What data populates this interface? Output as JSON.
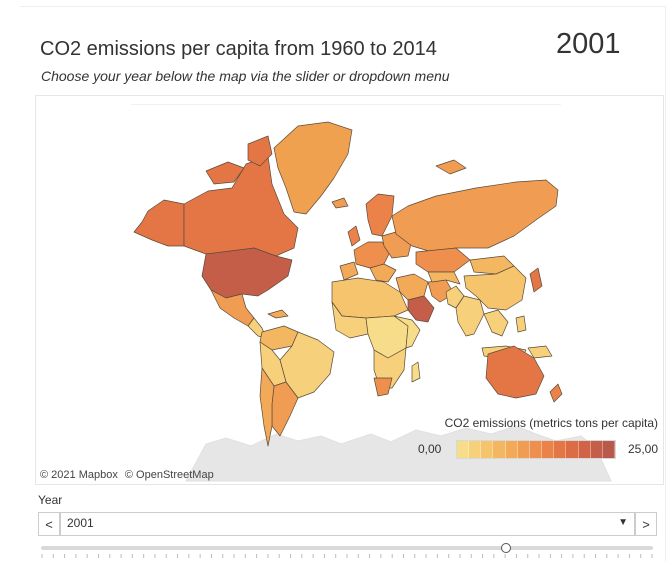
{
  "header": {
    "title": "CO2 emissions per capita from 1960 to 2014",
    "subtitle": "Choose your year below the map via the slider or dropdown menu",
    "selected_year_display": "2001"
  },
  "map": {
    "credit_mapbox": "© 2021 Mapbox",
    "credit_osm": "© OpenStreetMap",
    "colors": {
      "low": "#f6d77e",
      "mid": "#f0a14f",
      "high": "#e26f3e",
      "top": "#b45a4c",
      "antarctica": "#e6e6e6",
      "border": "#5a4a3a"
    }
  },
  "legend": {
    "title": "CO2 emissions (metrics tons per capita)",
    "min_label": "0,00",
    "max_label": "25,00",
    "steps": [
      "#f7dc8a",
      "#f6d07a",
      "#f5c46c",
      "#f4b761",
      "#f2a958",
      "#f09c52",
      "#ee8f4d",
      "#ea8249",
      "#e47646",
      "#dc6c45",
      "#d16446",
      "#c45e48",
      "#b75a4b"
    ]
  },
  "year_control": {
    "label": "Year",
    "selected": "2001",
    "prev_glyph": "<",
    "next_glyph": ">",
    "caret_glyph": "▼"
  },
  "slider": {
    "min_year": 1960,
    "max_year": 2014,
    "value": 2001,
    "tick_count": 55
  }
}
